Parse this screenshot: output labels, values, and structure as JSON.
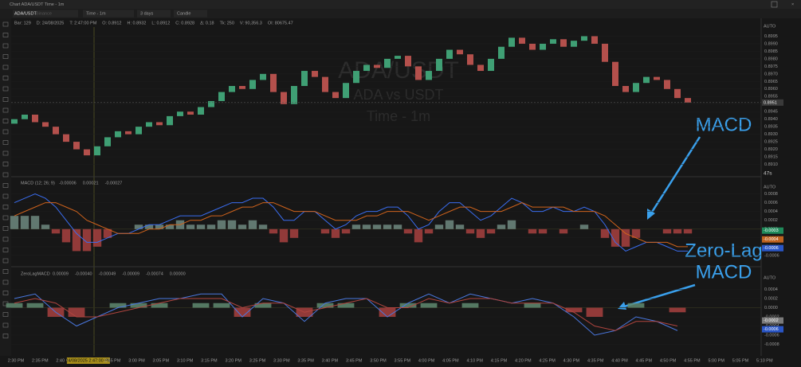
{
  "window": {
    "title": "Chart ADA/USDT Time - 1m"
  },
  "toolbar": {
    "symbol": "ADA/USDT",
    "exchange": "Binance",
    "timeframe": "Time - 1m",
    "range": "3 days",
    "style": "Candle"
  },
  "info": [
    "Bar: 129",
    "D: 24/08/2025",
    "T: 2:47:00 PM",
    "O: 0.8912",
    "H: 0.8932",
    "L: 0.8912",
    "C: 0.8928",
    "Δ: 0.18",
    "Tk: 250",
    "V: 90,356.3",
    "OI: 80675.47"
  ],
  "watermark": {
    "symbol": "ADA/USDT",
    "name": "ADA vs USDT",
    "timeframe": "Time - 1m"
  },
  "countdown": "47s",
  "price": {
    "type": "candlestick",
    "axis_mode": "AUTO",
    "ylim": [
      0.8905,
      0.9
    ],
    "yticks": [
      {
        "value": 0.891,
        "label": "0.8910"
      },
      0.8915,
      {
        "value": 0.892,
        "label": "0.8920"
      },
      0.8925,
      {
        "value": 0.893,
        "label": "0.8930"
      },
      0.8935,
      {
        "value": 0.894,
        "label": "0.8940"
      },
      0.8945,
      {
        "value": 0.895,
        "label": "0.8950"
      },
      0.8955,
      {
        "value": 0.896,
        "label": "0.8960"
      },
      0.8965,
      {
        "value": 0.897,
        "label": "0.8970"
      },
      0.8975,
      {
        "value": 0.898,
        "label": "0.8980"
      },
      0.8985,
      {
        "value": 0.899,
        "label": "0.8990"
      },
      0.8995
    ],
    "up_color": "#3f9f74",
    "down_color": "#b4504c",
    "open": [
      0.8937,
      0.894,
      0.8943,
      0.8938,
      0.8935,
      0.893,
      0.8925,
      0.892,
      0.8916,
      0.8922,
      0.8928,
      0.8932,
      0.893,
      0.8935,
      0.8938,
      0.8936,
      0.8942,
      0.8945,
      0.8943,
      0.8948,
      0.8952,
      0.8958,
      0.8962,
      0.896,
      0.8966,
      0.897,
      0.8958,
      0.895,
      0.8962,
      0.8972,
      0.8968,
      0.8958,
      0.8954,
      0.8964,
      0.8972,
      0.8976,
      0.8974,
      0.898,
      0.8982,
      0.8975,
      0.8966,
      0.8972,
      0.898,
      0.8986,
      0.8983,
      0.8976,
      0.8972,
      0.898,
      0.8988,
      0.8994,
      0.899,
      0.8986,
      0.899,
      0.8993,
      0.8988,
      0.8992,
      0.8995,
      0.899,
      0.8978,
      0.8962,
      0.8958,
      0.8964,
      0.8968,
      0.8966,
      0.896,
      0.8954
    ],
    "close": [
      0.894,
      0.8943,
      0.8938,
      0.8935,
      0.893,
      0.8925,
      0.892,
      0.8916,
      0.8922,
      0.8928,
      0.8932,
      0.893,
      0.8935,
      0.8938,
      0.8936,
      0.8942,
      0.8945,
      0.8943,
      0.8948,
      0.8952,
      0.8958,
      0.8962,
      0.896,
      0.8966,
      0.897,
      0.8958,
      0.895,
      0.8962,
      0.8972,
      0.8968,
      0.8958,
      0.8954,
      0.8964,
      0.8972,
      0.8976,
      0.8974,
      0.898,
      0.8982,
      0.8975,
      0.8966,
      0.8972,
      0.898,
      0.8986,
      0.8983,
      0.8976,
      0.8972,
      0.898,
      0.8988,
      0.8994,
      0.899,
      0.8986,
      0.899,
      0.8993,
      0.8988,
      0.8992,
      0.8995,
      0.899,
      0.8978,
      0.8962,
      0.8958,
      0.8964,
      0.8968,
      0.8966,
      0.896,
      0.8954,
      0.8951
    ]
  },
  "macd": {
    "type": "macd",
    "title": "MACD (12; 26; 9)",
    "header_values": [
      "-0.00006",
      "0.00021",
      "-0.00027"
    ],
    "axis_mode": "AUTO",
    "ylim": [
      -0.0008,
      0.0009
    ],
    "yticks": [
      -0.0006,
      -0.0004,
      -0.0002,
      {
        "value": 0,
        "label": "0.0000"
      },
      0.0002,
      0.0004,
      0.0006,
      0.0008
    ],
    "value_boxes": [
      {
        "text": "-0.0003",
        "color": "#1f8a5a"
      },
      {
        "text": "-0.0004",
        "color": "#c0631f"
      },
      {
        "text": "-0.0006",
        "color": "#2a56c6"
      }
    ],
    "series": [
      {
        "name": "MACD",
        "color": "#3a6df0",
        "values": [
          0.0006,
          0.0007,
          0.0008,
          0.0007,
          0.0005,
          0.0002,
          -0.0001,
          -0.0003,
          -0.0003,
          -0.0002,
          -0.0001,
          -0.0001,
          0,
          0.0001,
          0.0001,
          0.0002,
          0.0003,
          0.0003,
          0.0003,
          0.0004,
          0.0005,
          0.0006,
          0.0006,
          0.0007,
          0.0007,
          0.0005,
          0.0002,
          0.0002,
          0.0004,
          0.0004,
          0.0002,
          0,
          0.0001,
          0.0003,
          0.0004,
          0.0004,
          0.0005,
          0.0005,
          0.0003,
          0,
          0.0001,
          0.0004,
          0.0006,
          0.0006,
          0.0004,
          0.0002,
          0.0003,
          0.0005,
          0.0007,
          0.0006,
          0.0004,
          0.0004,
          0.0005,
          0.0004,
          0.0004,
          0.0005,
          0.0004,
          0.0001,
          -0.0003,
          -0.0005,
          -0.0004,
          -0.0003,
          -0.0003,
          -0.0004,
          -0.0005,
          -0.0005
        ]
      },
      {
        "name": "Signal",
        "color": "#d0631c",
        "values": [
          0.0003,
          0.0004,
          0.0005,
          0.0006,
          0.0006,
          0.0005,
          0.0004,
          0.0002,
          0.0001,
          0,
          -0.0001,
          -0.0001,
          -0.0001,
          0,
          0,
          0.0001,
          0.0001,
          0.0002,
          0.0002,
          0.0003,
          0.0003,
          0.0004,
          0.0005,
          0.0005,
          0.0006,
          0.0006,
          0.0005,
          0.0004,
          0.0004,
          0.0004,
          0.0003,
          0.0002,
          0.0002,
          0.0002,
          0.0003,
          0.0003,
          0.0004,
          0.0004,
          0.0004,
          0.0003,
          0.0002,
          0.0003,
          0.0004,
          0.0005,
          0.0005,
          0.0004,
          0.0004,
          0.0004,
          0.0005,
          0.0006,
          0.0005,
          0.0005,
          0.0005,
          0.0005,
          0.0004,
          0.0004,
          0.0004,
          0.0003,
          0.0001,
          -0.0001,
          -0.0002,
          -0.0003,
          -0.0003,
          -0.0003,
          -0.0004,
          -0.0004
        ]
      }
    ],
    "histogram": {
      "up_color": "#6f8a80",
      "down_color": "#a8413f",
      "values": [
        0.0003,
        0.0003,
        0.0003,
        0.0001,
        -0.0001,
        -0.0003,
        -0.0005,
        -0.0005,
        -0.0004,
        -0.0002,
        0,
        0,
        0.0001,
        0.0001,
        0.0001,
        0.0001,
        0.0002,
        0.0001,
        0.0001,
        0.0001,
        0.0002,
        0.0002,
        0.0001,
        0.0002,
        0.0001,
        -0.0001,
        -0.0003,
        -0.0002,
        0,
        0,
        -0.0001,
        -0.0002,
        -0.0001,
        0.0001,
        0.0001,
        0.0001,
        0.0001,
        0.0001,
        -0.0001,
        -0.0003,
        -0.0001,
        0.0001,
        0.0002,
        0.0001,
        -0.0001,
        -0.0002,
        -0.0001,
        0.0001,
        0.0002,
        0,
        -0.0001,
        -0.0001,
        0,
        -0.0001,
        0,
        0.0001,
        0,
        -0.0002,
        -0.0004,
        -0.0004,
        -0.0002,
        0,
        0,
        -0.0001,
        -0.0001,
        -0.0001
      ]
    }
  },
  "zerolag": {
    "type": "macd",
    "title": "ZeroLagMACD",
    "header_values": [
      "0.00009",
      "-0.00040",
      "-0.00049",
      "-0.00009",
      "-0.00074",
      "0.00000"
    ],
    "axis_mode": "AUTO",
    "ylim": [
      -0.001,
      0.0006
    ],
    "yticks": [
      -0.0008,
      -0.0006,
      -0.0004,
      -0.0002,
      {
        "value": 0,
        "label": "0.0000"
      },
      0.0002,
      0.0004
    ],
    "value_boxes": [
      {
        "text": "-0.0002",
        "color": "#7a7a7a"
      },
      {
        "text": "-0.0006",
        "color": "#2a56c6"
      }
    ],
    "series": [
      {
        "name": "ZeroLag MACD",
        "color": "#4a78e0",
        "values": [
          0.0002,
          0.0003,
          -0.0001,
          -0.0004,
          -0.0002,
          0,
          0.0001,
          0.0002,
          0.0002,
          0.0003,
          0.0003,
          -0.0002,
          0.0002,
          0.0001,
          -0.0003,
          0.0001,
          0.0002,
          0.0002,
          -0.0002,
          0.0001,
          0.0003,
          0.0001,
          0.0003,
          0.0002,
          0.0001,
          0.0002,
          0.0001,
          -0.0002,
          -0.0006,
          -0.0005,
          -0.0002,
          -0.0003,
          -0.0005
        ]
      },
      {
        "name": "Signal",
        "color": "#b0453f",
        "values": [
          0.0001,
          0.0002,
          0.0001,
          -0.0002,
          -0.0002,
          -0.0001,
          0,
          0.0001,
          0.0002,
          0.0002,
          0.0002,
          0,
          0.0001,
          0.0001,
          -0.0001,
          0,
          0.0001,
          0.0002,
          0,
          0,
          0.0002,
          0.0001,
          0.0002,
          0.0002,
          0.0001,
          0.0001,
          0.0001,
          -0.0001,
          -0.0004,
          -0.0005,
          -0.0003,
          -0.0003,
          -0.0004
        ]
      }
    ],
    "histogram": {
      "up_color": "#5f8a70",
      "down_color": "#a8413f",
      "values": [
        0.0001,
        0.0001,
        -0.0002,
        -0.0002,
        0,
        0.0001,
        0.0001,
        0.0001,
        0,
        0.0001,
        0.0001,
        -0.0002,
        0.0001,
        0,
        -0.0002,
        0.0001,
        0.0001,
        0,
        -0.0002,
        0.0001,
        0.0001,
        0,
        0.0001,
        0,
        0,
        0.0001,
        0,
        -0.0001,
        -0.0002,
        0,
        0.0001,
        0,
        -0.0001
      ]
    }
  },
  "time_axis": [
    "2:30 PM",
    "2:35 PM",
    "2:40 PM",
    "24/08/2025 2:47:00 PM",
    "2:55 PM",
    "3:00 PM",
    "3:05 PM",
    "3:10 PM",
    "3:15 PM",
    "3:20 PM",
    "3:25 PM",
    "3:30 PM",
    "3:35 PM",
    "3:40 PM",
    "3:45 PM",
    "3:50 PM",
    "3:55 PM",
    "4:00 PM",
    "4:05 PM",
    "4:10 PM",
    "4:15 PM",
    "4:20 PM",
    "4:25 PM",
    "4:30 PM",
    "4:35 PM",
    "4:40 PM",
    "4:45 PM",
    "4:50 PM",
    "4:55 PM",
    "5:00 PM",
    "5:05 PM",
    "5:10 PM"
  ],
  "annotations": {
    "macd": "MACD",
    "zerolag": [
      "Zero-Lag",
      "MACD"
    ]
  }
}
